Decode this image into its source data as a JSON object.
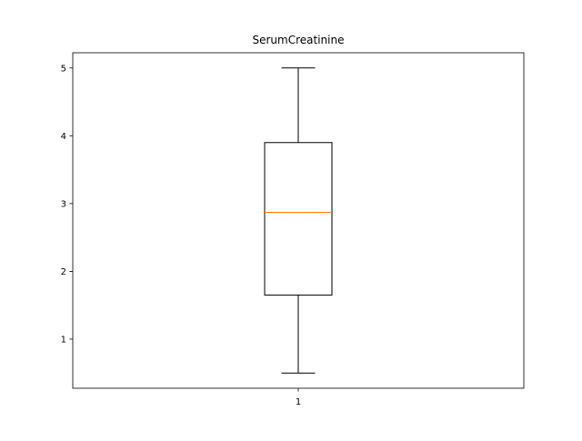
{
  "chart_data": {
    "type": "box",
    "title": "SerumCreatinine",
    "xlabel": "",
    "ylabel": "",
    "categories": [
      "1"
    ],
    "boxes": [
      {
        "category": "1",
        "whisker_low": 0.5,
        "q1": 1.65,
        "median": 2.87,
        "q3": 3.9,
        "whisker_high": 5.0
      }
    ],
    "ylim": [
      0.275,
      5.225
    ],
    "yticks": [
      1,
      2,
      3,
      4,
      5
    ],
    "ytick_labels": [
      "1",
      "2",
      "3",
      "4",
      "5"
    ],
    "grid": false,
    "colors": {
      "box": "#000000",
      "median": "#ff7f0e",
      "whisker": "#000000"
    }
  }
}
